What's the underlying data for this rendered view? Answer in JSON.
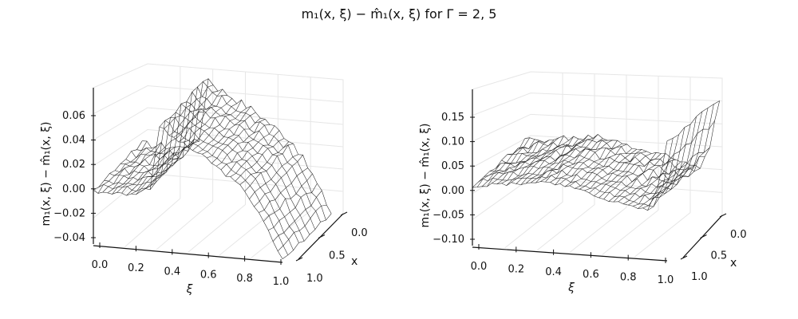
{
  "title": "m₁(x, ξ) − m̂₁(x, ξ) for Γ = 2, 5",
  "chart_data": [
    {
      "type": "surface-wireframe",
      "gamma": 2,
      "xlabel": "ξ",
      "ylabel": "x",
      "zlabel": "m₁(x, ξ) − m̂₁(x, ξ)",
      "xticks": [
        "0.0",
        "0.2",
        "0.4",
        "0.6",
        "0.8",
        "1.0"
      ],
      "yticks": [
        "0.0",
        "0.5",
        "1.0"
      ],
      "zticks": [
        "−0.04",
        "−0.02",
        "0.00",
        "0.02",
        "0.04",
        "0.06"
      ],
      "xlim": [
        0,
        1
      ],
      "ylim": [
        0,
        1
      ],
      "zlim": [
        -0.04,
        0.07
      ],
      "grid": true,
      "profile": {
        "xi": [
          0.0,
          0.2,
          0.3,
          0.35,
          0.4,
          0.6,
          0.8,
          0.9,
          1.0
        ],
        "z": [
          0.013,
          0.013,
          0.02,
          0.072,
          0.065,
          0.048,
          0.025,
          0.0,
          -0.03
        ]
      }
    },
    {
      "type": "surface-wireframe",
      "gamma": 5,
      "xlabel": "ξ",
      "ylabel": "x",
      "zlabel": "m₁(x, ξ) − m̂₁(x, ξ)",
      "xticks": [
        "0.0",
        "0.2",
        "0.4",
        "0.6",
        "0.8",
        "1.0"
      ],
      "yticks": [
        "0.0",
        "0.5",
        "1.0"
      ],
      "zticks": [
        "−0.10",
        "−0.05",
        "0.00",
        "0.05",
        "0.10",
        "0.15"
      ],
      "xlim": [
        0,
        1
      ],
      "ylim": [
        0,
        1
      ],
      "zlim": [
        -0.12,
        0.16
      ],
      "grid": true,
      "profile": {
        "xi": [
          0.0,
          0.2,
          0.4,
          0.6,
          0.8,
          0.9,
          0.95,
          1.0
        ],
        "z": [
          0.03,
          0.04,
          0.05,
          0.03,
          0.01,
          0.005,
          0.05,
          0.15
        ]
      }
    }
  ]
}
